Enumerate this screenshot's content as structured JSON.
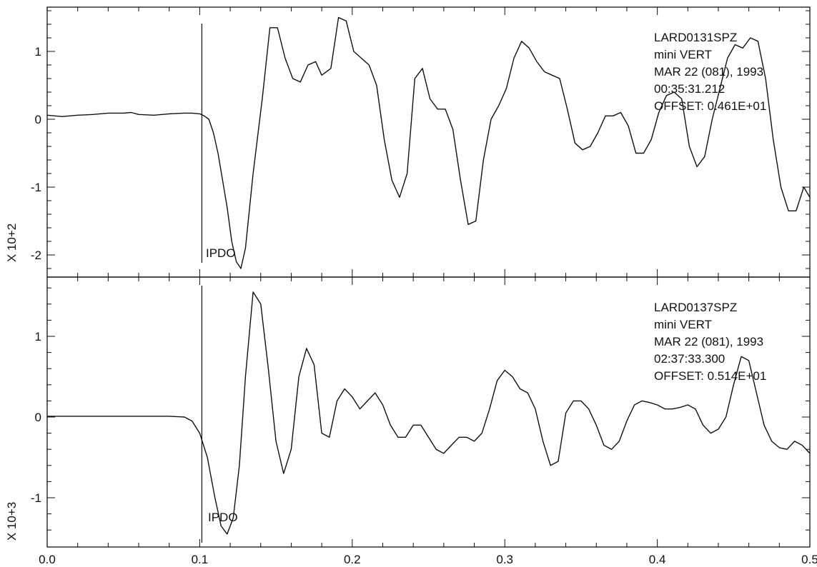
{
  "chart_data": [
    {
      "type": "line",
      "panel": "top",
      "ylabel": "X 10+2",
      "xlim": [
        0.0,
        0.5
      ],
      "ylim": [
        -2.3,
        1.6
      ],
      "xticks": [
        "0.0",
        "0.1",
        "0.2",
        "0.3",
        "0.4",
        "0.5"
      ],
      "yticks": [
        1,
        0,
        -1,
        -2
      ],
      "ytick_labels": [
        "1",
        "0",
        "-1",
        "-2"
      ],
      "grid": false,
      "marker": {
        "label": "IPDO",
        "x": 0.1
      },
      "annotation": [
        "LARD0131SPZ",
        "mini    VERT",
        "MAR 22 (081), 1993",
        "00:35:31.212",
        "OFFSET:   0.461E+01"
      ],
      "series": [
        {
          "x": [
            0.0,
            0.005,
            0.01,
            0.02,
            0.03,
            0.04,
            0.05,
            0.055,
            0.06,
            0.07,
            0.08,
            0.09,
            0.095,
            0.1,
            0.103,
            0.106,
            0.109,
            0.112,
            0.115,
            0.118,
            0.121,
            0.124,
            0.127,
            0.13,
            0.135,
            0.141,
            0.146,
            0.151,
            0.156,
            0.161,
            0.166,
            0.171,
            0.176,
            0.18,
            0.186,
            0.191,
            0.196,
            0.201,
            0.206,
            0.211,
            0.216,
            0.221,
            0.226,
            0.231,
            0.236,
            0.241,
            0.246,
            0.251,
            0.256,
            0.261,
            0.266,
            0.271,
            0.276,
            0.281,
            0.286,
            0.291,
            0.296,
            0.301,
            0.306,
            0.311,
            0.316,
            0.321,
            0.326,
            0.331,
            0.336,
            0.341,
            0.346,
            0.351,
            0.356,
            0.361,
            0.366,
            0.371,
            0.376,
            0.381,
            0.386,
            0.391,
            0.396,
            0.401,
            0.406,
            0.411,
            0.416,
            0.421,
            0.426,
            0.431,
            0.436,
            0.441,
            0.446,
            0.451,
            0.456,
            0.461,
            0.466,
            0.471,
            0.476,
            0.481,
            0.486,
            0.491,
            0.496,
            0.5
          ],
          "y": [
            0.06,
            0.05,
            0.04,
            0.06,
            0.07,
            0.09,
            0.09,
            0.1,
            0.07,
            0.06,
            0.08,
            0.09,
            0.09,
            0.08,
            0.05,
            0.0,
            -0.2,
            -0.5,
            -0.9,
            -1.3,
            -1.8,
            -2.1,
            -2.2,
            -1.9,
            -0.8,
            0.3,
            1.35,
            1.35,
            0.9,
            0.6,
            0.55,
            0.8,
            0.85,
            0.65,
            0.75,
            1.5,
            1.45,
            1.0,
            0.9,
            0.8,
            0.5,
            -0.3,
            -0.9,
            -1.15,
            -0.8,
            0.6,
            0.75,
            0.3,
            0.15,
            0.15,
            -0.15,
            -0.9,
            -1.55,
            -1.5,
            -0.6,
            0.0,
            0.2,
            0.45,
            0.9,
            1.15,
            1.05,
            0.85,
            0.7,
            0.65,
            0.6,
            0.15,
            -0.35,
            -0.45,
            -0.4,
            -0.2,
            0.05,
            0.05,
            0.1,
            -0.1,
            -0.5,
            -0.5,
            -0.3,
            0.1,
            0.35,
            0.4,
            0.3,
            -0.4,
            -0.7,
            -0.55,
            0.0,
            0.45,
            0.9,
            1.1,
            1.05,
            1.2,
            1.15,
            0.6,
            -0.3,
            -1.0,
            -1.35,
            -1.35,
            -1.0,
            -1.15
          ]
        }
      ]
    },
    {
      "type": "line",
      "panel": "bottom",
      "ylabel": "X 10+3",
      "xlim": [
        0.0,
        0.5
      ],
      "ylim": [
        -1.6,
        1.65
      ],
      "xticks": [
        "0.0",
        "0.1",
        "0.2",
        "0.3",
        "0.4",
        "0.5"
      ],
      "yticks": [
        1,
        0,
        -1
      ],
      "ytick_labels": [
        "1",
        "0",
        "-1"
      ],
      "grid": false,
      "marker": {
        "label": "IPDO",
        "x": 0.1
      },
      "annotation": [
        "LARD0137SPZ",
        "mini    VERT",
        "MAR 22 (081), 1993",
        "02:37:33.300",
        "OFFSET:   0.514E+01"
      ],
      "series": [
        {
          "x": [
            0.0,
            0.02,
            0.04,
            0.06,
            0.08,
            0.09,
            0.095,
            0.1,
            0.105,
            0.11,
            0.114,
            0.118,
            0.122,
            0.126,
            0.13,
            0.135,
            0.14,
            0.145,
            0.15,
            0.155,
            0.16,
            0.165,
            0.17,
            0.175,
            0.18,
            0.185,
            0.19,
            0.195,
            0.2,
            0.205,
            0.21,
            0.215,
            0.22,
            0.225,
            0.23,
            0.235,
            0.24,
            0.245,
            0.25,
            0.255,
            0.26,
            0.265,
            0.27,
            0.275,
            0.28,
            0.285,
            0.29,
            0.295,
            0.3,
            0.305,
            0.31,
            0.315,
            0.32,
            0.325,
            0.33,
            0.335,
            0.34,
            0.345,
            0.35,
            0.355,
            0.36,
            0.365,
            0.37,
            0.375,
            0.38,
            0.385,
            0.39,
            0.395,
            0.4,
            0.405,
            0.41,
            0.415,
            0.42,
            0.425,
            0.43,
            0.435,
            0.44,
            0.445,
            0.45,
            0.455,
            0.46,
            0.465,
            0.47,
            0.475,
            0.48,
            0.485,
            0.49,
            0.495,
            0.5
          ],
          "y": [
            0.01,
            0.01,
            0.01,
            0.01,
            0.01,
            0.0,
            -0.05,
            -0.2,
            -0.5,
            -1.0,
            -1.35,
            -1.45,
            -1.25,
            -0.6,
            0.5,
            1.55,
            1.4,
            0.6,
            -0.3,
            -0.7,
            -0.4,
            0.5,
            0.85,
            0.65,
            -0.2,
            -0.25,
            0.2,
            0.35,
            0.25,
            0.1,
            0.2,
            0.3,
            0.15,
            -0.1,
            -0.25,
            -0.25,
            -0.1,
            -0.1,
            -0.25,
            -0.4,
            -0.45,
            -0.35,
            -0.25,
            -0.25,
            -0.3,
            -0.2,
            0.1,
            0.45,
            0.58,
            0.5,
            0.35,
            0.3,
            0.1,
            -0.3,
            -0.6,
            -0.55,
            0.05,
            0.2,
            0.2,
            0.1,
            -0.1,
            -0.35,
            -0.4,
            -0.3,
            -0.05,
            0.15,
            0.2,
            0.18,
            0.15,
            0.1,
            0.1,
            0.12,
            0.15,
            0.1,
            -0.1,
            -0.2,
            -0.15,
            0.0,
            0.4,
            0.75,
            0.7,
            0.3,
            -0.1,
            -0.3,
            -0.38,
            -0.4,
            -0.3,
            -0.35,
            -0.45
          ]
        }
      ]
    }
  ]
}
